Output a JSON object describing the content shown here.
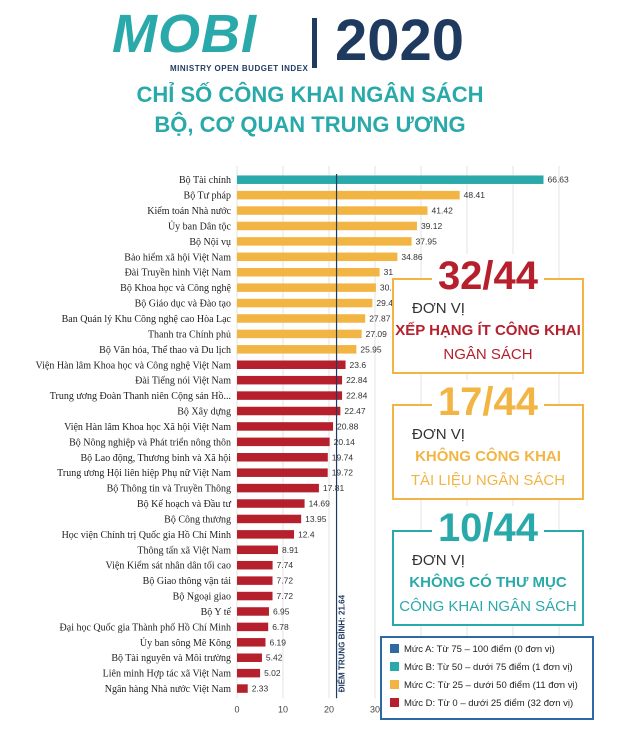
{
  "header": {
    "logo_text": "MOBI",
    "logo_subtitle": "MINISTRY OPEN BUDGET INDEX",
    "year": "2020",
    "title_line1": "CHỈ SỐ CÔNG KHAI NGÂN SÁCH",
    "title_line2": "BỘ, CƠ QUAN TRUNG ƯƠNG"
  },
  "colors": {
    "teal": "#2aa9ab",
    "yellow": "#f2b544",
    "red": "#b5202c",
    "blue": "#2d6aa3",
    "navy": "#1f3a5f"
  },
  "chart_data": {
    "type": "bar",
    "orientation": "horizontal",
    "categories": [
      "Bộ Tài chính",
      "Bộ Tư pháp",
      "Kiểm toán Nhà nước",
      "Ủy ban Dân tộc",
      "Bộ Nội vụ",
      "Bảo hiểm xã hội Việt Nam",
      "Đài Truyền hình Việt Nam",
      "Bộ Khoa học và Công nghệ",
      "Bộ Giáo dục và Đào tạo",
      "Ban Quản lý Khu Công nghệ cao Hòa Lạc",
      "Thanh tra Chính phủ",
      "Bộ Văn hóa, Thể thao và Du lịch",
      "Viện Hàn lâm Khoa học và Công nghệ Việt Nam",
      "Đài Tiếng nói Việt Nam",
      "Trung ương Đoàn Thanh niên Cộng sản Hồ...",
      "Bộ Xây dựng",
      "Viện Hàn lâm Khoa học Xã hội Việt Nam",
      "Bộ Nông nghiệp và Phát triển nông thôn",
      "Bộ Lao động, Thương binh và Xã hội",
      "Trung ương Hội liên hiệp Phụ nữ Việt Nam",
      "Bộ Thông tin và Truyền Thông",
      "Bộ Kế hoạch và Đầu tư",
      "Bộ Công thương",
      "Học viện Chính trị Quốc gia Hồ Chí Minh",
      "Thông tấn xã Việt Nam",
      "Viện Kiểm sát nhân dân tối cao",
      "Bộ Giao thông vận tải",
      "Bộ Ngoại giao",
      "Bộ Y tế",
      "Đại học Quốc gia Thành phố Hồ Chí Minh",
      "Ủy ban sông Mê Kông",
      "Bộ Tài nguyên và Môi trường",
      "Liên minh Hợp tác xã Việt Nam",
      "Ngân hàng Nhà nước Việt Nam"
    ],
    "values": [
      66.63,
      48.41,
      41.42,
      39.12,
      37.95,
      34.86,
      31,
      30.2,
      29.44,
      27.87,
      27.09,
      25.95,
      23.6,
      22.84,
      22.84,
      22.47,
      20.88,
      20.14,
      19.74,
      19.72,
      17.81,
      14.69,
      13.95,
      12.4,
      8.91,
      7.74,
      7.72,
      7.72,
      6.95,
      6.78,
      6.19,
      5.42,
      5.02,
      2.33
    ],
    "value_labels": [
      "66.63",
      "48.41",
      "41.42",
      "39.12",
      "37.95",
      "34.86",
      "31",
      "30.2",
      "29.44",
      "27.87",
      "27.09",
      "25.95",
      "23.6",
      "22.84",
      "22.84",
      "22.47",
      "20.88",
      "20.14",
      "19.74",
      "19.72",
      "17.81",
      "14.69",
      "13.95",
      "12.4",
      "8.91",
      "7.74",
      "7.72",
      "7.72",
      "6.95",
      "6.78",
      "6.19",
      "5.42",
      "5.02",
      "2.33"
    ],
    "xlim": [
      0,
      70
    ],
    "xticks": [
      "0",
      "10",
      "20",
      "30",
      "40",
      "50",
      "60",
      "70"
    ],
    "average": 21.64,
    "average_label": "ĐIỂM TRUNG BÌNH: 21.64",
    "grid": true,
    "legend_position": "bottom-right",
    "legend": [
      {
        "label": "Mức A: Từ 75 – 100 điểm (0 đơn vị)",
        "color": "#2d6aa3"
      },
      {
        "label": "Mức B: Từ 50 – dưới 75 điểm (1 đơn vị)",
        "color": "#2aa9ab"
      },
      {
        "label": "Mức C: Từ 25 – dưới 50 điểm (11 đơn vị)",
        "color": "#f2b544"
      },
      {
        "label": "Mức D: Từ 0 – dưới 25 điểm (32 đơn vị)",
        "color": "#b5202c"
      }
    ]
  },
  "callouts": [
    {
      "big": "32/44",
      "unit": "ĐƠN VỊ",
      "line1": "XẾP HẠNG ÍT CÔNG KHAI",
      "line2": "NGÂN SÁCH",
      "big_color": "#b5202c",
      "line1_color": "#b5202c",
      "line2_color": "#b5202c"
    },
    {
      "big": "17/44",
      "unit": "ĐƠN VỊ",
      "line1": "KHÔNG CÔNG KHAI",
      "line2": "TÀI LIỆU NGÂN SÁCH",
      "big_color": "#f2b544",
      "line1_color": "#f2b544",
      "line2_color": "#f2b544"
    },
    {
      "big": "10/44",
      "unit": "ĐƠN VỊ",
      "line1": "KHÔNG CÓ THƯ MỤC",
      "line2": "CÔNG KHAI NGÂN SÁCH",
      "big_color": "#2aa9ab",
      "line1_color": "#2aa9ab",
      "line2_color": "#2aa9ab"
    }
  ]
}
